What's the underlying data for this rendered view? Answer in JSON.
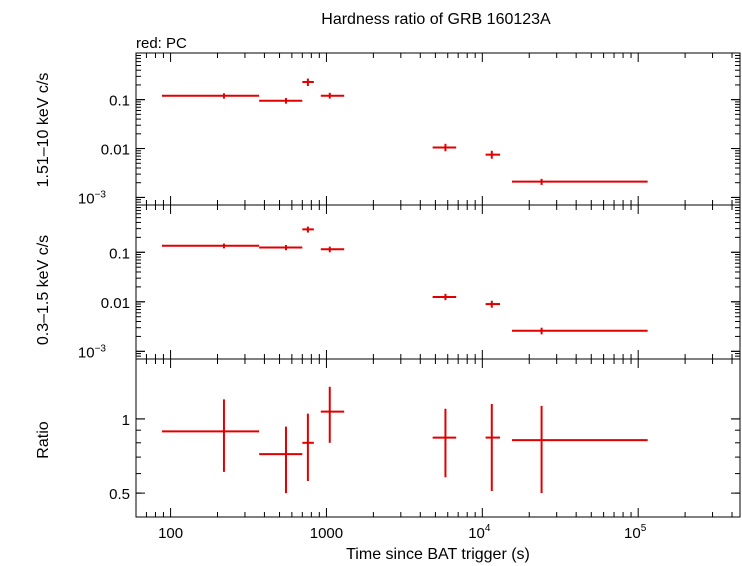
{
  "title": "Hardness ratio of GRB 160123A",
  "note": "red: PC",
  "xlabel": "Time since BAT trigger (s)",
  "colors": {
    "data": "#e00000",
    "axes": "#000000"
  },
  "chart_data": [
    {
      "type": "scatter",
      "name": "hard",
      "ylabel": "1.51–10 keV c/s",
      "xscale": "log",
      "yscale": "log",
      "xlim": [
        60,
        450000
      ],
      "ylim": [
        0.0007,
        0.9
      ],
      "yticks": [
        {
          "v": 0.1,
          "label": "0.1"
        },
        {
          "v": 0.01,
          "label": "0.01"
        },
        {
          "v": 0.001,
          "label": "10",
          "sup": "−3"
        }
      ],
      "points": [
        {
          "x": 220,
          "xlo": 88,
          "xhi": 370,
          "y": 0.12,
          "ylo": 0.105,
          "yhi": 0.135
        },
        {
          "x": 550,
          "xlo": 370,
          "xhi": 700,
          "y": 0.095,
          "ylo": 0.083,
          "yhi": 0.108
        },
        {
          "x": 760,
          "xlo": 700,
          "xhi": 830,
          "y": 0.23,
          "ylo": 0.19,
          "yhi": 0.27
        },
        {
          "x": 1050,
          "xlo": 920,
          "xhi": 1300,
          "y": 0.12,
          "ylo": 0.105,
          "yhi": 0.138
        },
        {
          "x": 5800,
          "xlo": 4800,
          "xhi": 6800,
          "y": 0.0105,
          "ylo": 0.0088,
          "yhi": 0.0125
        },
        {
          "x": 11500,
          "xlo": 10500,
          "xhi": 13000,
          "y": 0.0075,
          "ylo": 0.0062,
          "yhi": 0.009
        },
        {
          "x": 24000,
          "xlo": 15500,
          "xhi": 115000,
          "y": 0.0021,
          "ylo": 0.0018,
          "yhi": 0.0024
        }
      ]
    },
    {
      "type": "scatter",
      "name": "soft",
      "ylabel": "0.3–1.5 keV c/s",
      "xscale": "log",
      "yscale": "log",
      "xlim": [
        60,
        450000
      ],
      "ylim": [
        0.0007,
        0.9
      ],
      "yticks": [
        {
          "v": 0.1,
          "label": "0.1"
        },
        {
          "v": 0.01,
          "label": "0.01"
        },
        {
          "v": 0.001,
          "label": "10",
          "sup": "−3"
        }
      ],
      "points": [
        {
          "x": 220,
          "xlo": 88,
          "xhi": 370,
          "y": 0.135,
          "ylo": 0.12,
          "yhi": 0.15
        },
        {
          "x": 550,
          "xlo": 370,
          "xhi": 700,
          "y": 0.125,
          "ylo": 0.11,
          "yhi": 0.14
        },
        {
          "x": 760,
          "xlo": 700,
          "xhi": 830,
          "y": 0.29,
          "ylo": 0.25,
          "yhi": 0.33
        },
        {
          "x": 1050,
          "xlo": 920,
          "xhi": 1300,
          "y": 0.115,
          "ylo": 0.1,
          "yhi": 0.13
        },
        {
          "x": 5800,
          "xlo": 4800,
          "xhi": 6800,
          "y": 0.0125,
          "ylo": 0.0108,
          "yhi": 0.0145
        },
        {
          "x": 11500,
          "xlo": 10500,
          "xhi": 13000,
          "y": 0.009,
          "ylo": 0.0076,
          "yhi": 0.0105
        },
        {
          "x": 24000,
          "xlo": 15500,
          "xhi": 115000,
          "y": 0.0026,
          "ylo": 0.0022,
          "yhi": 0.003
        }
      ]
    },
    {
      "type": "scatter",
      "name": "ratio",
      "ylabel": "Ratio",
      "xscale": "log",
      "yscale": "log",
      "xlim": [
        60,
        450000
      ],
      "ylim": [
        0.4,
        1.75
      ],
      "yticks": [
        {
          "v": 1,
          "label": "1"
        },
        {
          "v": 0.5,
          "label": "0.5"
        }
      ],
      "xticks": [
        {
          "v": 100,
          "label": "100"
        },
        {
          "v": 1000,
          "label": "1000"
        },
        {
          "v": 10000,
          "label": "10",
          "sup": "4"
        },
        {
          "v": 100000,
          "label": "10",
          "sup": "5"
        }
      ],
      "points": [
        {
          "x": 220,
          "xlo": 88,
          "xhi": 370,
          "y": 0.89,
          "ylo": 0.61,
          "yhi": 1.2
        },
        {
          "x": 550,
          "xlo": 370,
          "xhi": 700,
          "y": 0.72,
          "ylo": 0.5,
          "yhi": 0.93
        },
        {
          "x": 760,
          "xlo": 700,
          "xhi": 830,
          "y": 0.8,
          "ylo": 0.56,
          "yhi": 1.05
        },
        {
          "x": 1050,
          "xlo": 920,
          "xhi": 1300,
          "y": 1.07,
          "ylo": 0.8,
          "yhi": 1.35
        },
        {
          "x": 5800,
          "xlo": 4800,
          "xhi": 6800,
          "y": 0.84,
          "ylo": 0.58,
          "yhi": 1.1
        },
        {
          "x": 11500,
          "xlo": 10500,
          "xhi": 13000,
          "y": 0.84,
          "ylo": 0.51,
          "yhi": 1.15
        },
        {
          "x": 24000,
          "xlo": 15500,
          "xhi": 115000,
          "y": 0.82,
          "ylo": 0.5,
          "yhi": 1.13
        }
      ]
    }
  ]
}
